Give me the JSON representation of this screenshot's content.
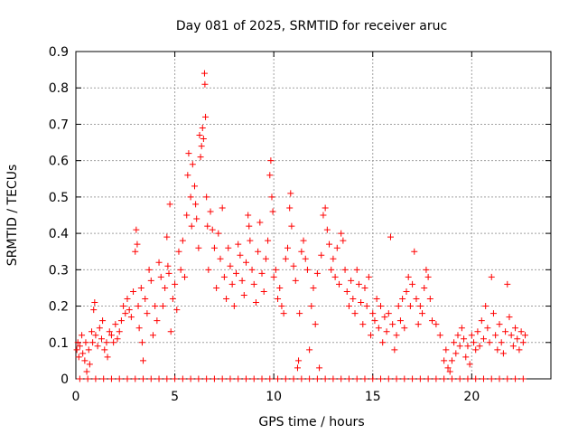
{
  "chart_data": {
    "type": "scatter",
    "title": "Day 081 of 2025, SRMTID for receiver aruc",
    "xlabel": "GPS time / hours",
    "ylabel": "SRMTID / TECUs",
    "xlim": [
      0,
      24
    ],
    "ylim": [
      0,
      0.9
    ],
    "xticks": [
      0,
      5,
      10,
      15,
      20
    ],
    "yticks": [
      0,
      0.1,
      0.2,
      0.3,
      0.4,
      0.5,
      0.6,
      0.7,
      0.8,
      0.9
    ],
    "xtick_labels": [
      "0",
      "5",
      "10",
      "15",
      "20"
    ],
    "ytick_labels": [
      "0",
      "0.1",
      "0.2",
      "0.3",
      "0.4",
      "0.5",
      "0.6",
      "0.7",
      "0.8",
      "0.9"
    ],
    "grid": true,
    "marker": "+",
    "color": "#ff0000",
    "series": [
      {
        "name": "SRMTID",
        "points": [
          [
            0.05,
            0.08
          ],
          [
            0.1,
            0.1
          ],
          [
            0.15,
            0.06
          ],
          [
            0.2,
            0.09
          ],
          [
            0.3,
            0.12
          ],
          [
            0.35,
            0.07
          ],
          [
            0.45,
            0.05
          ],
          [
            0.5,
            0.1
          ],
          [
            0.55,
            0.02
          ],
          [
            0.65,
            0.08
          ],
          [
            0.7,
            0.04
          ],
          [
            0.8,
            0.13
          ],
          [
            0.85,
            0.1
          ],
          [
            0.9,
            0.19
          ],
          [
            0.95,
            0.21
          ],
          [
            1.0,
            0.12
          ],
          [
            1.1,
            0.09
          ],
          [
            1.2,
            0.14
          ],
          [
            1.3,
            0.11
          ],
          [
            1.35,
            0.16
          ],
          [
            1.45,
            0.08
          ],
          [
            1.55,
            0.1
          ],
          [
            1.6,
            0.06
          ],
          [
            1.7,
            0.13
          ],
          [
            1.8,
            0.12
          ],
          [
            1.9,
            0.1
          ],
          [
            2.0,
            0.15
          ],
          [
            2.1,
            0.11
          ],
          [
            2.2,
            0.13
          ],
          [
            2.3,
            0.16
          ],
          [
            2.4,
            0.2
          ],
          [
            2.5,
            0.18
          ],
          [
            2.6,
            0.22
          ],
          [
            2.7,
            0.19
          ],
          [
            2.8,
            0.17
          ],
          [
            2.9,
            0.24
          ],
          [
            3.0,
            0.35
          ],
          [
            3.05,
            0.41
          ],
          [
            3.1,
            0.37
          ],
          [
            3.15,
            0.2
          ],
          [
            3.2,
            0.14
          ],
          [
            3.3,
            0.25
          ],
          [
            3.35,
            0.1
          ],
          [
            3.4,
            0.05
          ],
          [
            3.5,
            0.22
          ],
          [
            3.6,
            0.18
          ],
          [
            3.7,
            0.3
          ],
          [
            3.8,
            0.27
          ],
          [
            3.9,
            0.12
          ],
          [
            4.0,
            0.2
          ],
          [
            4.1,
            0.16
          ],
          [
            4.2,
            0.32
          ],
          [
            4.3,
            0.28
          ],
          [
            4.4,
            0.2
          ],
          [
            4.5,
            0.25
          ],
          [
            4.6,
            0.39
          ],
          [
            4.65,
            0.31
          ],
          [
            4.7,
            0.29
          ],
          [
            4.75,
            0.48
          ],
          [
            4.8,
            0.13
          ],
          [
            4.9,
            0.22
          ],
          [
            5.0,
            0.26
          ],
          [
            5.1,
            0.19
          ],
          [
            5.2,
            0.35
          ],
          [
            5.3,
            0.3
          ],
          [
            5.4,
            0.38
          ],
          [
            5.5,
            0.28
          ],
          [
            5.6,
            0.45
          ],
          [
            5.65,
            0.56
          ],
          [
            5.7,
            0.62
          ],
          [
            5.8,
            0.5
          ],
          [
            5.85,
            0.42
          ],
          [
            5.9,
            0.59
          ],
          [
            6.0,
            0.53
          ],
          [
            6.05,
            0.48
          ],
          [
            6.1,
            0.44
          ],
          [
            6.2,
            0.36
          ],
          [
            6.25,
            0.67
          ],
          [
            6.3,
            0.61
          ],
          [
            6.35,
            0.64
          ],
          [
            6.4,
            0.69
          ],
          [
            6.45,
            0.66
          ],
          [
            6.5,
            0.84
          ],
          [
            6.52,
            0.81
          ],
          [
            6.55,
            0.72
          ],
          [
            6.6,
            0.5
          ],
          [
            6.65,
            0.42
          ],
          [
            6.7,
            0.3
          ],
          [
            6.8,
            0.46
          ],
          [
            6.9,
            0.41
          ],
          [
            7.0,
            0.36
          ],
          [
            7.1,
            0.25
          ],
          [
            7.2,
            0.4
          ],
          [
            7.3,
            0.33
          ],
          [
            7.4,
            0.47
          ],
          [
            7.5,
            0.28
          ],
          [
            7.6,
            0.22
          ],
          [
            7.7,
            0.36
          ],
          [
            7.8,
            0.31
          ],
          [
            7.9,
            0.26
          ],
          [
            8.0,
            0.2
          ],
          [
            8.1,
            0.29
          ],
          [
            8.2,
            0.37
          ],
          [
            8.3,
            0.34
          ],
          [
            8.4,
            0.27
          ],
          [
            8.5,
            0.23
          ],
          [
            8.6,
            0.32
          ],
          [
            8.7,
            0.45
          ],
          [
            8.75,
            0.42
          ],
          [
            8.8,
            0.38
          ],
          [
            8.9,
            0.3
          ],
          [
            9.0,
            0.26
          ],
          [
            9.1,
            0.21
          ],
          [
            9.2,
            0.35
          ],
          [
            9.3,
            0.43
          ],
          [
            9.4,
            0.29
          ],
          [
            9.5,
            0.24
          ],
          [
            9.6,
            0.33
          ],
          [
            9.7,
            0.38
          ],
          [
            9.8,
            0.56
          ],
          [
            9.85,
            0.6
          ],
          [
            9.9,
            0.5
          ],
          [
            9.95,
            0.46
          ],
          [
            10.0,
            0.28
          ],
          [
            10.1,
            0.3
          ],
          [
            10.2,
            0.22
          ],
          [
            10.3,
            0.25
          ],
          [
            10.4,
            0.2
          ],
          [
            10.5,
            0.18
          ],
          [
            10.6,
            0.33
          ],
          [
            10.7,
            0.36
          ],
          [
            10.8,
            0.47
          ],
          [
            10.85,
            0.51
          ],
          [
            10.9,
            0.42
          ],
          [
            11.0,
            0.31
          ],
          [
            11.1,
            0.27
          ],
          [
            11.2,
            0.03
          ],
          [
            11.25,
            0.05
          ],
          [
            11.3,
            0.18
          ],
          [
            11.4,
            0.35
          ],
          [
            11.5,
            0.38
          ],
          [
            11.6,
            0.33
          ],
          [
            11.7,
            0.3
          ],
          [
            11.8,
            0.08
          ],
          [
            11.9,
            0.2
          ],
          [
            12.0,
            0.25
          ],
          [
            12.1,
            0.15
          ],
          [
            12.2,
            0.29
          ],
          [
            12.3,
            0.03
          ],
          [
            12.4,
            0.34
          ],
          [
            12.5,
            0.45
          ],
          [
            12.6,
            0.47
          ],
          [
            12.7,
            0.41
          ],
          [
            12.8,
            0.37
          ],
          [
            12.9,
            0.3
          ],
          [
            13.0,
            0.33
          ],
          [
            13.1,
            0.28
          ],
          [
            13.2,
            0.36
          ],
          [
            13.3,
            0.26
          ],
          [
            13.4,
            0.4
          ],
          [
            13.5,
            0.38
          ],
          [
            13.6,
            0.3
          ],
          [
            13.7,
            0.24
          ],
          [
            13.8,
            0.2
          ],
          [
            13.9,
            0.27
          ],
          [
            14.0,
            0.22
          ],
          [
            14.1,
            0.18
          ],
          [
            14.2,
            0.3
          ],
          [
            14.3,
            0.26
          ],
          [
            14.4,
            0.21
          ],
          [
            14.5,
            0.15
          ],
          [
            14.6,
            0.25
          ],
          [
            14.7,
            0.2
          ],
          [
            14.8,
            0.28
          ],
          [
            14.9,
            0.12
          ],
          [
            15.0,
            0.18
          ],
          [
            15.1,
            0.16
          ],
          [
            15.2,
            0.22
          ],
          [
            15.3,
            0.14
          ],
          [
            15.4,
            0.2
          ],
          [
            15.5,
            0.1
          ],
          [
            15.6,
            0.17
          ],
          [
            15.7,
            0.13
          ],
          [
            15.8,
            0.18
          ],
          [
            15.9,
            0.39
          ],
          [
            16.0,
            0.15
          ],
          [
            16.1,
            0.08
          ],
          [
            16.2,
            0.12
          ],
          [
            16.3,
            0.2
          ],
          [
            16.4,
            0.16
          ],
          [
            16.5,
            0.22
          ],
          [
            16.6,
            0.14
          ],
          [
            16.7,
            0.24
          ],
          [
            16.8,
            0.28
          ],
          [
            16.9,
            0.2
          ],
          [
            17.0,
            0.26
          ],
          [
            17.1,
            0.35
          ],
          [
            17.2,
            0.22
          ],
          [
            17.3,
            0.15
          ],
          [
            17.4,
            0.2
          ],
          [
            17.5,
            0.18
          ],
          [
            17.6,
            0.25
          ],
          [
            17.7,
            0.3
          ],
          [
            17.8,
            0.28
          ],
          [
            17.9,
            0.22
          ],
          [
            18.0,
            0.16
          ],
          [
            18.2,
            0.15
          ],
          [
            18.4,
            0.12
          ],
          [
            18.6,
            0.05
          ],
          [
            18.7,
            0.08
          ],
          [
            18.8,
            0.03
          ],
          [
            18.9,
            0.02
          ],
          [
            19.0,
            0.05
          ],
          [
            19.1,
            0.1
          ],
          [
            19.2,
            0.07
          ],
          [
            19.3,
            0.12
          ],
          [
            19.4,
            0.09
          ],
          [
            19.5,
            0.14
          ],
          [
            19.6,
            0.11
          ],
          [
            19.7,
            0.06
          ],
          [
            19.8,
            0.09
          ],
          [
            19.9,
            0.04
          ],
          [
            20.0,
            0.12
          ],
          [
            20.1,
            0.1
          ],
          [
            20.2,
            0.08
          ],
          [
            20.3,
            0.13
          ],
          [
            20.4,
            0.09
          ],
          [
            20.5,
            0.16
          ],
          [
            20.6,
            0.11
          ],
          [
            20.7,
            0.2
          ],
          [
            20.8,
            0.14
          ],
          [
            20.9,
            0.1
          ],
          [
            21.0,
            0.28
          ],
          [
            21.1,
            0.18
          ],
          [
            21.2,
            0.12
          ],
          [
            21.3,
            0.08
          ],
          [
            21.4,
            0.15
          ],
          [
            21.5,
            0.1
          ],
          [
            21.6,
            0.07
          ],
          [
            21.7,
            0.13
          ],
          [
            21.8,
            0.26
          ],
          [
            21.9,
            0.17
          ],
          [
            22.0,
            0.12
          ],
          [
            22.1,
            0.09
          ],
          [
            22.2,
            0.14
          ],
          [
            22.3,
            0.11
          ],
          [
            22.4,
            0.08
          ],
          [
            22.5,
            0.13
          ],
          [
            22.6,
            0.1
          ],
          [
            22.7,
            0.12
          ],
          [
            0.2,
            0.0
          ],
          [
            0.6,
            0.0
          ],
          [
            1.0,
            0.0
          ],
          [
            1.4,
            0.0
          ],
          [
            1.8,
            0.0
          ],
          [
            2.2,
            0.0
          ],
          [
            2.6,
            0.0
          ],
          [
            3.0,
            0.0
          ],
          [
            3.4,
            0.0
          ],
          [
            3.8,
            0.0
          ],
          [
            4.2,
            0.0
          ],
          [
            4.6,
            0.0
          ],
          [
            5.0,
            0.0
          ],
          [
            5.4,
            0.0
          ],
          [
            5.8,
            0.0
          ],
          [
            6.2,
            0.0
          ],
          [
            6.6,
            0.0
          ],
          [
            7.0,
            0.0
          ],
          [
            7.4,
            0.0
          ],
          [
            7.8,
            0.0
          ],
          [
            8.2,
            0.0
          ],
          [
            8.6,
            0.0
          ],
          [
            9.0,
            0.0
          ],
          [
            9.4,
            0.0
          ],
          [
            9.8,
            0.0
          ],
          [
            10.2,
            0.0
          ],
          [
            10.6,
            0.0
          ],
          [
            11.0,
            0.0
          ],
          [
            11.4,
            0.0
          ],
          [
            11.8,
            0.0
          ],
          [
            12.2,
            0.0
          ],
          [
            12.6,
            0.0
          ],
          [
            13.0,
            0.0
          ],
          [
            13.4,
            0.0
          ],
          [
            13.8,
            0.0
          ],
          [
            14.2,
            0.0
          ],
          [
            14.6,
            0.0
          ],
          [
            15.0,
            0.0
          ],
          [
            15.4,
            0.0
          ],
          [
            15.8,
            0.0
          ],
          [
            16.2,
            0.0
          ],
          [
            16.6,
            0.0
          ],
          [
            17.0,
            0.0
          ],
          [
            17.4,
            0.0
          ],
          [
            17.8,
            0.0
          ],
          [
            18.2,
            0.0
          ],
          [
            18.6,
            0.0
          ],
          [
            19.0,
            0.0
          ],
          [
            19.4,
            0.0
          ],
          [
            19.8,
            0.0
          ],
          [
            20.2,
            0.0
          ],
          [
            20.6,
            0.0
          ],
          [
            21.0,
            0.0
          ],
          [
            21.4,
            0.0
          ],
          [
            21.8,
            0.0
          ],
          [
            22.2,
            0.0
          ],
          [
            22.6,
            0.0
          ]
        ]
      }
    ]
  }
}
